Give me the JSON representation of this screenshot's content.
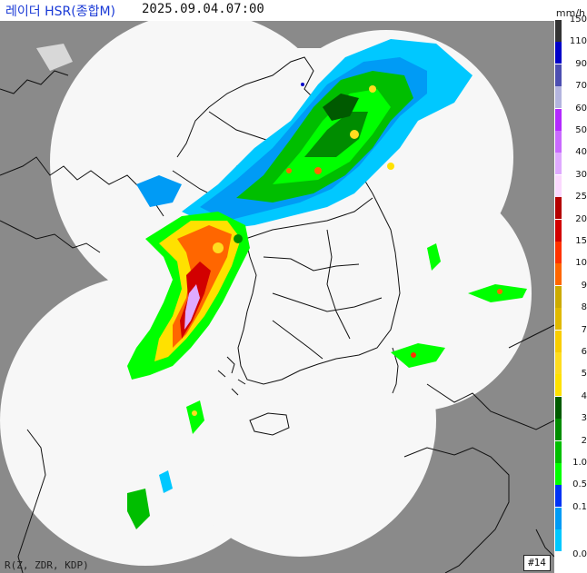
{
  "title": "레이더 HSR(종합M)",
  "timestamp": "2025.09.04.07:00",
  "legend": {
    "unit": "mm/h",
    "labels": [
      "150",
      "110",
      "90",
      "70",
      "60",
      "50",
      "40",
      "30",
      "25",
      "20",
      "15",
      "10",
      "9",
      "8",
      "7",
      "6",
      "5",
      "4",
      "3",
      "2",
      "1.0",
      "0.5",
      "0.1",
      "0.0"
    ],
    "colors": [
      "#333333",
      "#0000c8",
      "#4c4eb1",
      "#b3b4de",
      "#b329ff",
      "#c969ff",
      "#dfa9ff",
      "#fbd8fe",
      "#b40000",
      "#d20000",
      "#ff3200",
      "#ff6600",
      "#ccaa00",
      "#e0b900",
      "#f9cd00",
      "#ffdc1f",
      "#ffe100",
      "#005a00",
      "#008c00",
      "#00be00",
      "#00ff00",
      "#0033f5",
      "#009bf5",
      "#00c8ff"
    ]
  },
  "footer": {
    "variables": "R(Z, ZDR, KDP)",
    "site_code": "#14"
  }
}
